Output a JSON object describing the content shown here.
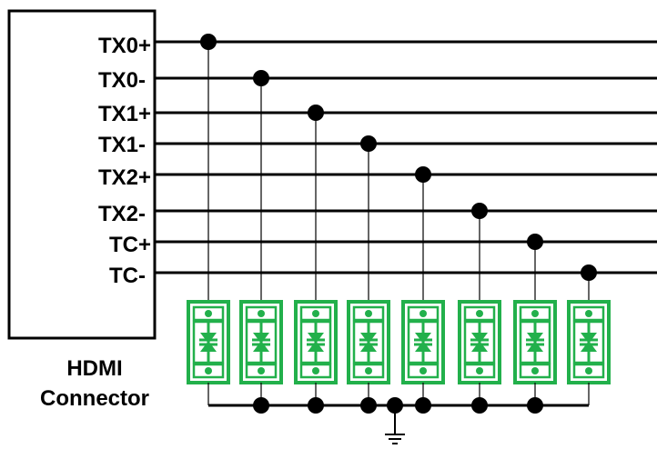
{
  "connector": {
    "name_line1": "HDMI",
    "name_line2": "Connector",
    "pins": [
      "TX0+",
      "TX0-",
      "TX1+",
      "TX1-",
      "TX2+",
      "TX2-",
      "TC+",
      "TC-"
    ]
  },
  "colors": {
    "wire": "#000000",
    "protection_device": "#22b04b",
    "background": "#ffffff"
  },
  "icons": [
    "esd-protection-diode-icon",
    "ground-icon",
    "junction-dot-icon"
  ]
}
